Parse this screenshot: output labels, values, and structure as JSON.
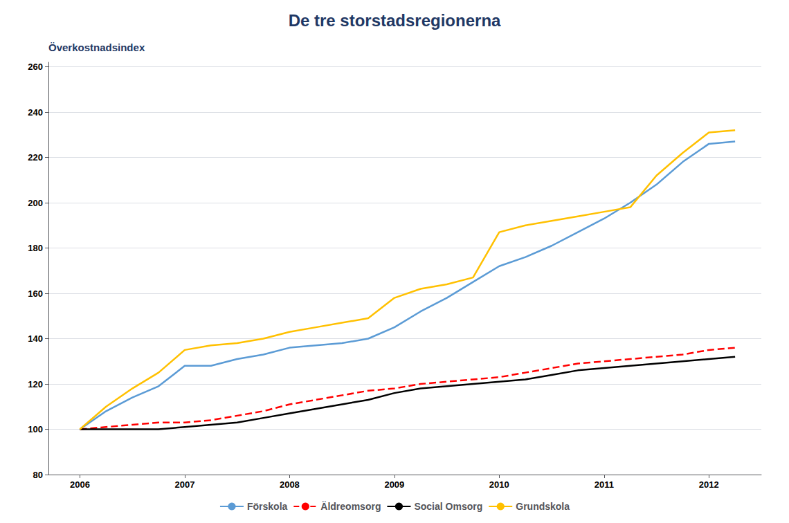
{
  "chart_data": {
    "type": "line",
    "title": "De tre storstadsregionerna",
    "ylabel": "Överkostnadsindex",
    "xlim": [
      2005.7,
      2012.5
    ],
    "xticks": [
      2006,
      2007,
      2008,
      2009,
      2010,
      2011,
      2012
    ],
    "ylim": [
      80,
      262
    ],
    "yticks": [
      80,
      100,
      120,
      140,
      160,
      180,
      200,
      220,
      240,
      260
    ],
    "grid": "y",
    "legend": "bottom",
    "x": [
      2006.0,
      2006.25,
      2006.5,
      2006.75,
      2007.0,
      2007.25,
      2007.5,
      2007.75,
      2008.0,
      2008.25,
      2008.5,
      2008.75,
      2009.0,
      2009.25,
      2009.5,
      2009.75,
      2010.0,
      2010.25,
      2010.5,
      2010.75,
      2011.0,
      2011.25,
      2011.5,
      2011.75,
      2012.0,
      2012.25
    ],
    "series": [
      {
        "name": "Förskola",
        "color": "#5B9BD5",
        "line_style": "solid",
        "values": [
          100,
          108,
          114,
          119,
          128,
          128,
          131,
          133,
          136,
          137,
          138,
          140,
          145,
          152,
          158,
          165,
          172,
          176,
          181,
          187,
          193,
          200,
          208,
          218,
          226,
          227
        ]
      },
      {
        "name": "Äldreomsorg",
        "color": "#FF0000",
        "line_style": "dashed",
        "values": [
          100,
          101,
          102,
          103,
          103,
          104,
          106,
          108,
          111,
          113,
          115,
          117,
          118,
          120,
          121,
          122,
          123,
          125,
          127,
          129,
          130,
          131,
          132,
          133,
          135,
          136
        ]
      },
      {
        "name": "Social Omsorg",
        "color": "#000000",
        "line_style": "solid",
        "values": [
          100,
          100,
          100,
          100,
          101,
          102,
          103,
          105,
          107,
          109,
          111,
          113,
          116,
          118,
          119,
          120,
          121,
          122,
          124,
          126,
          127,
          128,
          129,
          130,
          131,
          132
        ]
      },
      {
        "name": "Grundskola",
        "color": "#FFC000",
        "line_style": "solid",
        "values": [
          100,
          110,
          118,
          125,
          135,
          137,
          138,
          140,
          143,
          145,
          147,
          149,
          158,
          162,
          164,
          167,
          187,
          190,
          192,
          194,
          196,
          198,
          212,
          222,
          231,
          232
        ]
      }
    ]
  }
}
